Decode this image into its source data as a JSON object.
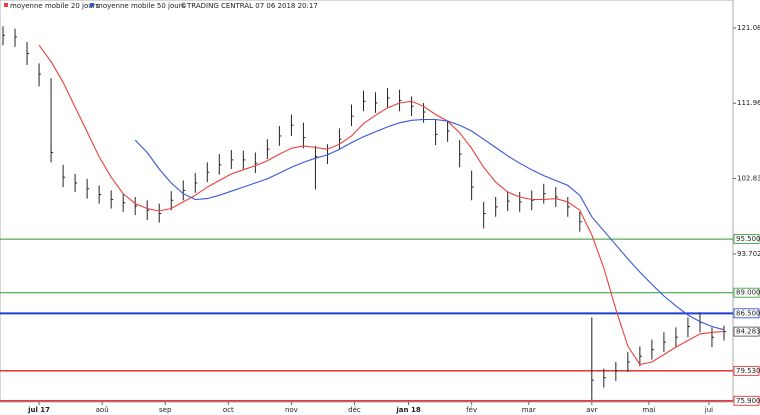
{
  "chart_data": {
    "type": "ohlc",
    "legend": [
      {
        "name": "moyenne mobile 20 jours",
        "color": "#e8413c"
      },
      {
        "name": "moyenne mobile 50 jours",
        "color": "#3a56d8"
      }
    ],
    "copyright": "©TRADING CENTRAL 07 06 2018 20:17",
    "xlim": [
      0,
      244
    ],
    "xticks": [
      {
        "value": 13,
        "label": "jul 17"
      },
      {
        "value": 34,
        "label": "aoû"
      },
      {
        "value": 55,
        "label": "sep"
      },
      {
        "value": 76,
        "label": "oct"
      },
      {
        "value": 97,
        "label": "nov"
      },
      {
        "value": 118,
        "label": "déc"
      },
      {
        "value": 136,
        "label": "jan 18"
      },
      {
        "value": 157,
        "label": "fév"
      },
      {
        "value": 176,
        "label": "mar"
      },
      {
        "value": 197,
        "label": "avr"
      },
      {
        "value": 216,
        "label": "mai"
      },
      {
        "value": 236,
        "label": "jui"
      }
    ],
    "ylim": [
      75.75,
      124.48
    ],
    "yticks": [
      121.083,
      111.965,
      102.833,
      93.702
    ],
    "x": [
      1,
      5,
      9,
      13,
      17,
      21,
      25,
      29,
      33,
      37,
      41,
      45,
      49,
      53,
      57,
      61,
      65,
      69,
      73,
      77,
      81,
      85,
      89,
      93,
      97,
      101,
      105,
      109,
      113,
      117,
      121,
      125,
      129,
      133,
      137,
      141,
      145,
      149,
      153,
      157,
      161,
      165,
      169,
      173,
      177,
      181,
      185,
      189,
      193,
      197,
      201,
      205,
      209,
      213,
      217,
      221,
      225,
      229,
      233,
      237,
      241
    ],
    "high": [
      121.3,
      121.0,
      119.4,
      116.8,
      115.0,
      104.5,
      103.4,
      102.8,
      102.0,
      101.4,
      101.0,
      100.6,
      100.2,
      99.8,
      101.3,
      102.6,
      103.5,
      104.8,
      105.8,
      106.3,
      106.2,
      106.0,
      107.6,
      109.2,
      110.6,
      109.6,
      106.8,
      107.0,
      108.9,
      111.8,
      113.5,
      113.3,
      113.8,
      113.6,
      112.8,
      112.0,
      110.0,
      109.8,
      107.5,
      103.8,
      100.0,
      100.6,
      101.3,
      101.2,
      101.4,
      102.2,
      101.8,
      100.6,
      98.8,
      86.0,
      79.8,
      80.6,
      81.8,
      82.5,
      83.3,
      84.2,
      84.8,
      86.0,
      86.6,
      84.8,
      85.0
    ],
    "low": [
      119.0,
      118.8,
      116.6,
      114.0,
      104.8,
      101.8,
      101.2,
      100.4,
      99.8,
      99.2,
      98.8,
      98.4,
      97.8,
      97.5,
      99.0,
      100.2,
      101.1,
      102.4,
      103.3,
      104.0,
      104.0,
      103.5,
      105.2,
      106.8,
      108.0,
      106.5,
      101.5,
      104.6,
      106.3,
      109.2,
      111.0,
      110.8,
      111.4,
      111.0,
      110.4,
      109.6,
      106.9,
      107.3,
      104.2,
      100.2,
      96.8,
      98.2,
      98.9,
      98.8,
      99.0,
      99.8,
      99.4,
      98.2,
      96.4,
      76.0,
      77.5,
      78.3,
      79.4,
      80.1,
      80.9,
      81.8,
      82.4,
      83.6,
      84.2,
      82.4,
      83.2
    ],
    "close": [
      120.2,
      120.0,
      118.0,
      115.5,
      106.0,
      103.0,
      102.3,
      101.6,
      100.9,
      100.3,
      99.9,
      99.5,
      99.0,
      98.6,
      100.2,
      101.4,
      102.3,
      103.6,
      104.5,
      105.1,
      105.1,
      104.7,
      106.4,
      108.0,
      109.3,
      107.8,
      105.5,
      105.8,
      107.6,
      110.4,
      112.2,
      112.0,
      112.6,
      112.3,
      111.6,
      110.9,
      108.2,
      108.6,
      105.8,
      101.8,
      98.6,
      99.4,
      100.1,
      100.0,
      100.2,
      101.0,
      100.6,
      99.4,
      97.6,
      78.4,
      78.7,
      79.5,
      80.6,
      81.3,
      82.1,
      83.0,
      83.6,
      84.9,
      85.4,
      83.6,
      84.283
    ],
    "bar_color": "#222222",
    "series": [
      {
        "name": "moyenne mobile 20 jours",
        "color": "#e8413c",
        "values": [
          null,
          null,
          null,
          119.0,
          117.0,
          114.5,
          111.5,
          108.5,
          105.5,
          103.0,
          101.0,
          99.8,
          99.2,
          98.9,
          99.2,
          100.0,
          100.8,
          101.8,
          102.6,
          103.4,
          103.9,
          104.4,
          105.0,
          105.8,
          106.5,
          106.8,
          106.6,
          106.4,
          107.0,
          108.0,
          109.5,
          110.5,
          111.4,
          112.0,
          112.2,
          111.6,
          110.6,
          109.8,
          108.4,
          106.5,
          104.2,
          102.4,
          101.2,
          100.6,
          100.3,
          100.3,
          100.4,
          100.0,
          99.0,
          96.0,
          92.0,
          87.0,
          82.5,
          80.3,
          80.6,
          81.5,
          82.4,
          83.2,
          84.0,
          84.2,
          84.3
        ]
      },
      {
        "name": "moyenne mobile 50 jours",
        "color": "#3a56d8",
        "values": [
          null,
          null,
          null,
          null,
          null,
          null,
          null,
          null,
          null,
          null,
          null,
          107.5,
          106.0,
          104.0,
          102.3,
          101.0,
          100.3,
          100.4,
          100.8,
          101.3,
          101.8,
          102.3,
          102.8,
          103.5,
          104.2,
          104.8,
          105.3,
          105.7,
          106.4,
          107.2,
          107.9,
          108.5,
          109.1,
          109.6,
          109.9,
          110.0,
          110.0,
          109.8,
          109.3,
          108.6,
          107.6,
          106.6,
          105.6,
          104.7,
          103.9,
          103.2,
          102.6,
          102.0,
          100.8,
          98.2,
          96.5,
          94.8,
          93.1,
          91.5,
          90.0,
          88.6,
          87.4,
          86.3,
          85.5,
          84.9,
          84.5
        ]
      }
    ],
    "levels": [
      {
        "value": 95.5,
        "label": "95.500",
        "color": "#2e9a2e"
      },
      {
        "value": 89.0,
        "label": "89.000",
        "color": "#2e9a2e"
      },
      {
        "value": 86.5,
        "label": "86.500",
        "color": "#1f3fd0"
      },
      {
        "value": 79.53,
        "label": "79.530",
        "color": "#e02020"
      },
      {
        "value": 75.9,
        "label": "75.900",
        "color": "#e02020"
      }
    ]
  }
}
